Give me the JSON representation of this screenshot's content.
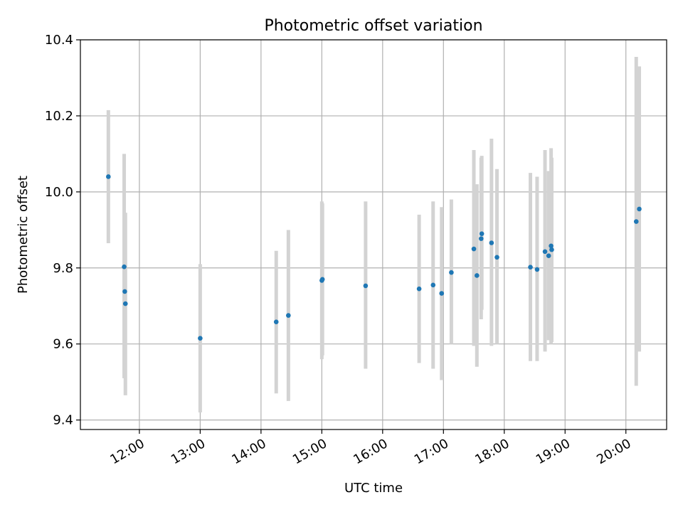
{
  "chart_data": {
    "type": "scatter",
    "title": "Photometric offset variation",
    "xlabel": "UTC time",
    "ylabel": "Photometric offset",
    "x_unit": "UTC hours",
    "xlim": [
      11.03,
      20.67
    ],
    "ylim": [
      9.375,
      10.4
    ],
    "grid": true,
    "legend": "none",
    "x_ticks": [
      {
        "value": 12,
        "label": "12:00"
      },
      {
        "value": 13,
        "label": "13:00"
      },
      {
        "value": 14,
        "label": "14:00"
      },
      {
        "value": 15,
        "label": "15:00"
      },
      {
        "value": 16,
        "label": "16:00"
      },
      {
        "value": 17,
        "label": "17:00"
      },
      {
        "value": 18,
        "label": "18:00"
      },
      {
        "value": 19,
        "label": "19:00"
      },
      {
        "value": 20,
        "label": "20:00"
      }
    ],
    "y_ticks": [
      {
        "value": 9.4,
        "label": "9.4"
      },
      {
        "value": 9.6,
        "label": "9.6"
      },
      {
        "value": 9.8,
        "label": "9.8"
      },
      {
        "value": 10.0,
        "label": "10.0"
      },
      {
        "value": 10.2,
        "label": "10.2"
      },
      {
        "value": 10.4,
        "label": "10.4"
      }
    ],
    "colors": {
      "point": "#1f77b4",
      "errorbar": "#d3d3d3",
      "grid": "#b0b0b0",
      "axes": "#000000"
    },
    "series": [
      {
        "points": [
          {
            "x": 11.49,
            "y": 10.04,
            "low": 9.865,
            "high": 10.215
          },
          {
            "x": 11.75,
            "y": 9.803,
            "low": 9.51,
            "high": 10.1
          },
          {
            "x": 11.76,
            "y": 9.738,
            "low": 9.53,
            "high": 9.945
          },
          {
            "x": 11.77,
            "y": 9.706,
            "low": 9.465,
            "high": 9.945
          },
          {
            "x": 13.0,
            "y": 9.615,
            "low": 9.42,
            "high": 9.81
          },
          {
            "x": 14.25,
            "y": 9.658,
            "low": 9.47,
            "high": 9.845
          },
          {
            "x": 14.45,
            "y": 9.675,
            "low": 9.45,
            "high": 9.9
          },
          {
            "x": 15.0,
            "y": 9.767,
            "low": 9.56,
            "high": 9.975
          },
          {
            "x": 15.01,
            "y": 9.77,
            "low": 9.57,
            "high": 9.97
          },
          {
            "x": 15.72,
            "y": 9.753,
            "low": 9.535,
            "high": 9.975
          },
          {
            "x": 16.6,
            "y": 9.745,
            "low": 9.55,
            "high": 9.94
          },
          {
            "x": 16.83,
            "y": 9.755,
            "low": 9.535,
            "high": 9.975
          },
          {
            "x": 16.97,
            "y": 9.733,
            "low": 9.505,
            "high": 9.96
          },
          {
            "x": 17.13,
            "y": 9.788,
            "low": 9.6,
            "high": 9.98
          },
          {
            "x": 17.5,
            "y": 9.85,
            "low": 9.595,
            "high": 10.11
          },
          {
            "x": 17.55,
            "y": 9.78,
            "low": 9.54,
            "high": 10.02
          },
          {
            "x": 17.62,
            "y": 9.877,
            "low": 9.665,
            "high": 10.09
          },
          {
            "x": 17.63,
            "y": 9.89,
            "low": 9.69,
            "high": 10.095
          },
          {
            "x": 17.79,
            "y": 9.866,
            "low": 9.595,
            "high": 10.14
          },
          {
            "x": 17.88,
            "y": 9.828,
            "low": 9.6,
            "high": 10.06
          },
          {
            "x": 18.43,
            "y": 9.802,
            "low": 9.555,
            "high": 10.05
          },
          {
            "x": 18.54,
            "y": 9.796,
            "low": 9.555,
            "high": 10.04
          },
          {
            "x": 18.67,
            "y": 9.843,
            "low": 9.58,
            "high": 10.11
          },
          {
            "x": 18.73,
            "y": 9.832,
            "low": 9.61,
            "high": 10.055
          },
          {
            "x": 18.77,
            "y": 9.858,
            "low": 9.6,
            "high": 10.115
          },
          {
            "x": 18.78,
            "y": 9.848,
            "low": 9.605,
            "high": 10.09
          },
          {
            "x": 20.17,
            "y": 9.922,
            "low": 9.49,
            "high": 10.355
          },
          {
            "x": 20.22,
            "y": 9.955,
            "low": 9.58,
            "high": 10.33
          }
        ]
      }
    ]
  }
}
